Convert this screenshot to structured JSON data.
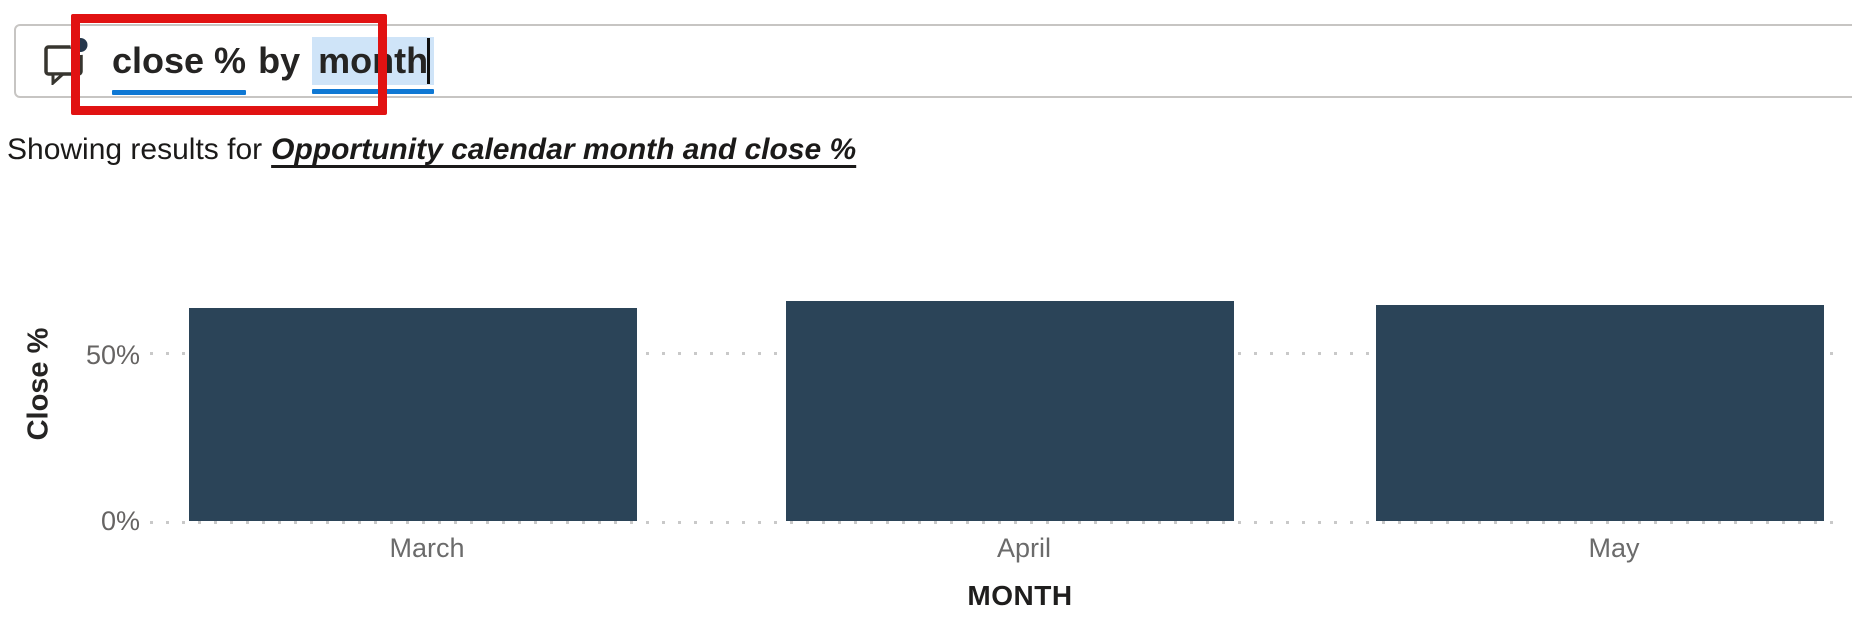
{
  "query_bar": {
    "icon": "qa-comment-bubble-icon",
    "segments": [
      {
        "text": "close %",
        "style": "term"
      },
      {
        "text": "by",
        "style": "plain"
      },
      {
        "text": "month",
        "style": "term-highlighted"
      }
    ],
    "caret_visible": true
  },
  "annotation": {
    "shape": "red-rectangle",
    "color": "#e11212"
  },
  "results_caption": {
    "prefix": "Showing results for",
    "interpretation": "Opportunity calendar month and close %"
  },
  "chart_data": {
    "type": "bar",
    "title": "",
    "categories": [
      "March",
      "April",
      "May"
    ],
    "values": [
      64,
      66,
      65
    ],
    "value_unit": "%",
    "xlabel": "MONTH",
    "ylabel": "Close %",
    "y_ticks": [
      {
        "label": "0%",
        "value": 0
      },
      {
        "label": "50%",
        "value": 50
      }
    ],
    "ylim": [
      0,
      70
    ],
    "grid": "dotted-horizontal",
    "legend": "none",
    "bar_color": "#2b4458"
  },
  "colors": {
    "term_underline": "#0f78d4",
    "term_highlight": "#cfe4f8",
    "bar": "#2b4458",
    "annotation_red": "#e11212",
    "tick_text": "#666463",
    "category_text": "#6b6b6b",
    "axis_title_text": "#252423",
    "input_border": "#c7c5c3"
  }
}
